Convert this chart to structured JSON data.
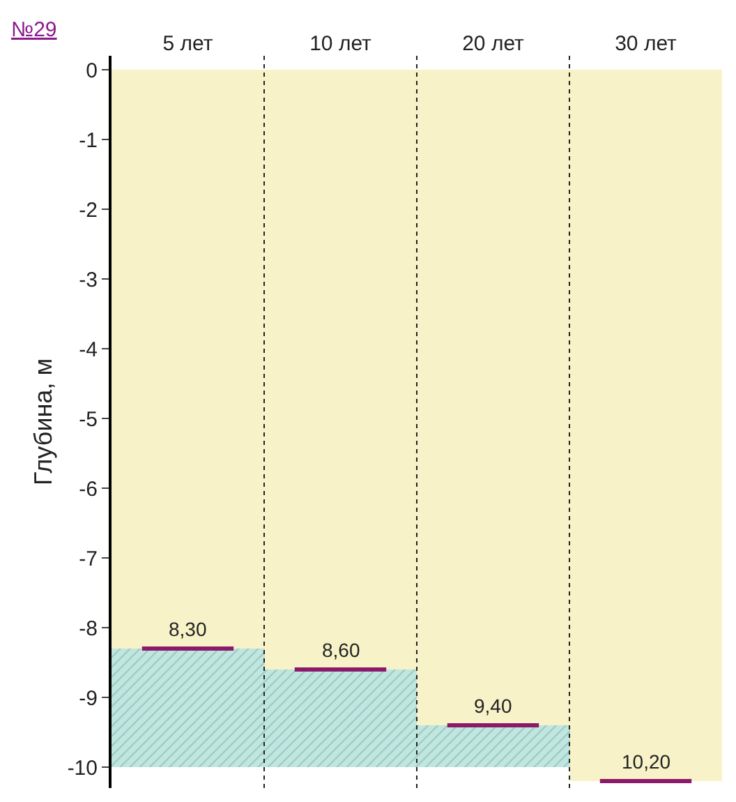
{
  "chart_data": {
    "type": "bar",
    "stacked": true,
    "title": "№29",
    "categories": [
      "5 лет",
      "10 лет",
      "20 лет",
      "30 лет"
    ],
    "series": [
      {
        "color": "#f7f2c8",
        "values": [
          -8.3,
          -8.6,
          -9.4,
          -10.2
        ]
      },
      {
        "color": "#bfe6df",
        "values": [
          -1.7,
          -1.4,
          -0.6,
          null
        ]
      }
    ],
    "annotations": [
      {
        "text": "8,30",
        "x": "5 лет",
        "y": -8.3
      },
      {
        "text": "8,60",
        "x": "10 лет",
        "y": -8.6
      },
      {
        "text": "9,40",
        "x": "20 лет",
        "y": -9.4
      },
      {
        "text": "10,20",
        "x": "30 лет",
        "y": -10.2
      }
    ],
    "ylabel": "Глубина, м",
    "ylim": [
      -10.3,
      0.2
    ],
    "yticks": [
      0,
      -1,
      -2,
      -3,
      -4,
      -5,
      -6,
      -7,
      -8,
      -9,
      -10
    ]
  }
}
